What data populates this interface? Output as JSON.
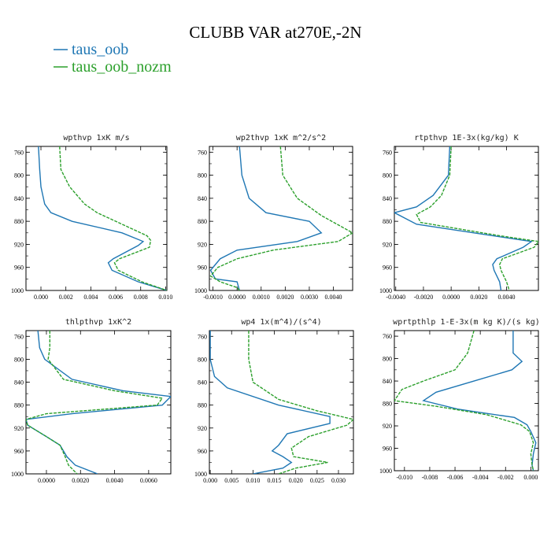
{
  "figure": {
    "title": "CLUBB VAR at270E,-2N",
    "legend": [
      {
        "name": "taus_oob",
        "color": "#1f77b4"
      },
      {
        "name": "taus_oob_nozm",
        "color": "#2ca02c"
      }
    ]
  },
  "chart_data": [
    {
      "type": "line",
      "title": "wpthvp  1xK m/s",
      "xlim": [
        -0.0012,
        0.0101
      ],
      "ylim": [
        1000,
        750
      ],
      "yticks": [
        "760",
        "800",
        "840",
        "880",
        "920",
        "960",
        "1000"
      ],
      "xticks": [
        "0.000",
        "0.002",
        "0.004",
        "0.006",
        "0.008",
        "0.010"
      ],
      "xtick_values": [
        0.0,
        0.002,
        0.004,
        0.006,
        0.008,
        0.01
      ],
      "series": [
        {
          "name": "taus_oob",
          "points": [
            [
              -0.0002,
              750
            ],
            [
              -0.0001,
              790
            ],
            [
              0.0,
              820
            ],
            [
              0.0003,
              850
            ],
            [
              0.0008,
              865
            ],
            [
              0.0025,
              880
            ],
            [
              0.0065,
              900
            ],
            [
              0.0082,
              915
            ],
            [
              0.0078,
              922
            ],
            [
              0.0058,
              945
            ],
            [
              0.0054,
              952
            ],
            [
              0.0057,
              965
            ],
            [
              0.0078,
              985
            ],
            [
              0.0101,
              1000
            ]
          ]
        },
        {
          "name": "taus_oob_nozm",
          "points": [
            [
              0.0015,
              750
            ],
            [
              0.0016,
              790
            ],
            [
              0.0023,
              820
            ],
            [
              0.0035,
              850
            ],
            [
              0.0045,
              865
            ],
            [
              0.006,
              880
            ],
            [
              0.0085,
              905
            ],
            [
              0.0088,
              913
            ],
            [
              0.0087,
              925
            ],
            [
              0.0063,
              945
            ],
            [
              0.0059,
              952
            ],
            [
              0.0062,
              965
            ],
            [
              0.0081,
              985
            ],
            [
              0.0101,
              1000
            ]
          ]
        }
      ]
    },
    {
      "type": "line",
      "title": "wp2thvp  1xK m^2/s^2",
      "xlim": [
        -0.00115,
        0.0048
      ],
      "ylim": [
        1000,
        750
      ],
      "yticks": [
        "760",
        "800",
        "840",
        "880",
        "920",
        "960",
        "1000"
      ],
      "xticks": [
        "-0.0010",
        "0.0000",
        "0.0010",
        "0.0020",
        "0.0030",
        "0.0040"
      ],
      "xtick_values": [
        -0.001,
        0.0,
        0.001,
        0.002,
        0.003,
        0.004
      ],
      "series": [
        {
          "name": "taus_oob",
          "points": [
            [
              0.0001,
              750
            ],
            [
              0.0002,
              800
            ],
            [
              0.0005,
              840
            ],
            [
              0.0012,
              865
            ],
            [
              0.003,
              880
            ],
            [
              0.0035,
              900
            ],
            [
              0.0025,
              915
            ],
            [
              0.0,
              930
            ],
            [
              -0.0007,
              945
            ],
            [
              -0.0011,
              965
            ],
            [
              -0.0009,
              980
            ],
            [
              0.0,
              985
            ],
            [
              0.0001,
              1000
            ]
          ]
        },
        {
          "name": "taus_oob_nozm",
          "points": [
            [
              0.0018,
              750
            ],
            [
              0.0019,
              800
            ],
            [
              0.0025,
              840
            ],
            [
              0.0035,
              870
            ],
            [
              0.0048,
              900
            ],
            [
              0.0042,
              915
            ],
            [
              0.0015,
              930
            ],
            [
              0.0,
              945
            ],
            [
              -0.0008,
              960
            ],
            [
              -0.0011,
              975
            ],
            [
              -0.0007,
              985
            ],
            [
              0.0,
              995
            ],
            [
              0.0001,
              1000
            ]
          ]
        }
      ]
    },
    {
      "type": "line",
      "title": "rtpthvp  1E-3x(kg/kg) K",
      "xlim": [
        -0.0041,
        0.0063
      ],
      "ylim": [
        1000,
        750
      ],
      "yticks": [
        "760",
        "800",
        "840",
        "880",
        "920",
        "960",
        "1000"
      ],
      "xticks": [
        "-0.0040",
        "-0.0020",
        "0.0000",
        "0.0020",
        "0.0040"
      ],
      "xtick_values": [
        -0.004,
        -0.002,
        0.0,
        0.002,
        0.004
      ],
      "series": [
        {
          "name": "taus_oob",
          "points": [
            [
              -0.0001,
              750
            ],
            [
              -0.0002,
              800
            ],
            [
              -0.0013,
              835
            ],
            [
              -0.0025,
              855
            ],
            [
              -0.0041,
              865
            ],
            [
              -0.0025,
              885
            ],
            [
              0.003,
              905
            ],
            [
              0.0058,
              915
            ],
            [
              0.0052,
              925
            ],
            [
              0.0033,
              945
            ],
            [
              0.003,
              955
            ],
            [
              0.0031,
              965
            ],
            [
              0.0035,
              985
            ],
            [
              0.0036,
              1000
            ]
          ]
        },
        {
          "name": "taus_oob_nozm",
          "points": [
            [
              0.0,
              750
            ],
            [
              -0.0001,
              800
            ],
            [
              -0.0007,
              835
            ],
            [
              -0.0015,
              855
            ],
            [
              -0.0025,
              868
            ],
            [
              -0.0022,
              882
            ],
            [
              0.0035,
              905
            ],
            [
              0.0063,
              915
            ],
            [
              0.006,
              925
            ],
            [
              0.0037,
              945
            ],
            [
              0.0035,
              955
            ],
            [
              0.0036,
              965
            ],
            [
              0.004,
              985
            ],
            [
              0.0042,
              1000
            ]
          ]
        }
      ]
    },
    {
      "type": "line",
      "title": "thlpthvp  1xK^2",
      "xlim": [
        -0.0012,
        0.0073
      ],
      "ylim": [
        1000,
        750
      ],
      "yticks": [
        "760",
        "800",
        "840",
        "880",
        "920",
        "960",
        "1000"
      ],
      "xticks": [
        "0.0000",
        "0.0020",
        "0.0040",
        "0.0060"
      ],
      "xtick_values": [
        0.0,
        0.002,
        0.004,
        0.006
      ],
      "series": [
        {
          "name": "taus_oob",
          "points": [
            [
              -0.0005,
              750
            ],
            [
              -0.0004,
              780
            ],
            [
              -0.0001,
              800
            ],
            [
              0.0015,
              835
            ],
            [
              0.0045,
              855
            ],
            [
              0.0073,
              865
            ],
            [
              0.0068,
              880
            ],
            [
              0.0015,
              895
            ],
            [
              -0.0012,
              905
            ],
            [
              -0.0011,
              915
            ],
            [
              0.0,
              935
            ],
            [
              0.0008,
              950
            ],
            [
              0.0012,
              970
            ],
            [
              0.0017,
              985
            ],
            [
              0.003,
              1000
            ]
          ]
        },
        {
          "name": "taus_oob_nozm",
          "points": [
            [
              0.0002,
              750
            ],
            [
              0.0002,
              780
            ],
            [
              0.0001,
              800
            ],
            [
              0.001,
              835
            ],
            [
              0.004,
              855
            ],
            [
              0.0068,
              868
            ],
            [
              0.0065,
              880
            ],
            [
              0.0,
              895
            ],
            [
              -0.0012,
              905
            ],
            [
              -0.0011,
              915
            ],
            [
              0.0,
              935
            ],
            [
              0.0008,
              950
            ],
            [
              0.0011,
              970
            ],
            [
              0.0013,
              985
            ],
            [
              0.0018,
              1000
            ]
          ]
        }
      ]
    },
    {
      "type": "line",
      "title": "wp4  1x(m^4)/(s^4)",
      "xlim": [
        -0.0002,
        0.0335
      ],
      "ylim": [
        1000,
        750
      ],
      "yticks": [
        "760",
        "800",
        "840",
        "880",
        "920",
        "960",
        "1000"
      ],
      "xticks": [
        "0.000",
        "0.005",
        "0.010",
        "0.015",
        "0.020",
        "0.025",
        "0.030"
      ],
      "xtick_values": [
        0.0,
        0.005,
        0.01,
        0.015,
        0.02,
        0.025,
        0.03
      ],
      "series": [
        {
          "name": "taus_oob",
          "points": [
            [
              0.0,
              750
            ],
            [
              0.0,
              800
            ],
            [
              0.001,
              830
            ],
            [
              0.004,
              850
            ],
            [
              0.016,
              880
            ],
            [
              0.028,
              900
            ],
            [
              0.028,
              912
            ],
            [
              0.018,
              930
            ],
            [
              0.016,
              950
            ],
            [
              0.0145,
              960
            ],
            [
              0.017,
              970
            ],
            [
              0.019,
              980
            ],
            [
              0.017,
              990
            ],
            [
              0.01,
              1000
            ]
          ]
        },
        {
          "name": "taus_oob_nozm",
          "points": [
            [
              0.009,
              750
            ],
            [
              0.009,
              800
            ],
            [
              0.01,
              840
            ],
            [
              0.016,
              870
            ],
            [
              0.025,
              890
            ],
            [
              0.0335,
              905
            ],
            [
              0.032,
              915
            ],
            [
              0.023,
              935
            ],
            [
              0.019,
              955
            ],
            [
              0.0195,
              970
            ],
            [
              0.0275,
              980
            ],
            [
              0.02,
              990
            ],
            [
              0.016,
              1000
            ]
          ]
        }
      ]
    },
    {
      "type": "line",
      "title": "wprtpthlp  1-E-3x(m kg K)/(s kg)",
      "xlim": [
        -0.0108,
        0.0006
      ],
      "ylim": [
        1000,
        750
      ],
      "yticks": [
        "760",
        "800",
        "840",
        "880",
        "920",
        "960",
        "1000"
      ],
      "xticks": [
        "-0.010",
        "-0.008",
        "-0.006",
        "-0.004",
        "-0.002",
        "0.000"
      ],
      "xtick_values": [
        -0.01,
        -0.008,
        -0.006,
        -0.004,
        -0.002,
        0.0
      ],
      "series": [
        {
          "name": "taus_oob",
          "points": [
            [
              -0.0014,
              750
            ],
            [
              -0.0014,
              790
            ],
            [
              -0.0007,
              805
            ],
            [
              -0.0015,
              820
            ],
            [
              -0.0045,
              840
            ],
            [
              -0.0075,
              860
            ],
            [
              -0.0085,
              875
            ],
            [
              -0.0058,
              890
            ],
            [
              -0.0013,
              905
            ],
            [
              -0.0003,
              918
            ],
            [
              0.0,
              930
            ],
            [
              0.0004,
              950
            ],
            [
              0.0002,
              970
            ],
            [
              0.0001,
              990
            ],
            [
              0.0002,
              1000
            ]
          ]
        },
        {
          "name": "taus_oob_nozm",
          "points": [
            [
              -0.0045,
              750
            ],
            [
              -0.005,
              790
            ],
            [
              -0.006,
              820
            ],
            [
              -0.0085,
              840
            ],
            [
              -0.0102,
              855
            ],
            [
              -0.0108,
              875
            ],
            [
              -0.0075,
              885
            ],
            [
              -0.0035,
              900
            ],
            [
              -0.0008,
              918
            ],
            [
              -0.0001,
              930
            ],
            [
              0.0002,
              950
            ],
            [
              0.0,
              970
            ],
            [
              0.0001,
              990
            ],
            [
              0.0002,
              1000
            ]
          ]
        }
      ]
    }
  ]
}
